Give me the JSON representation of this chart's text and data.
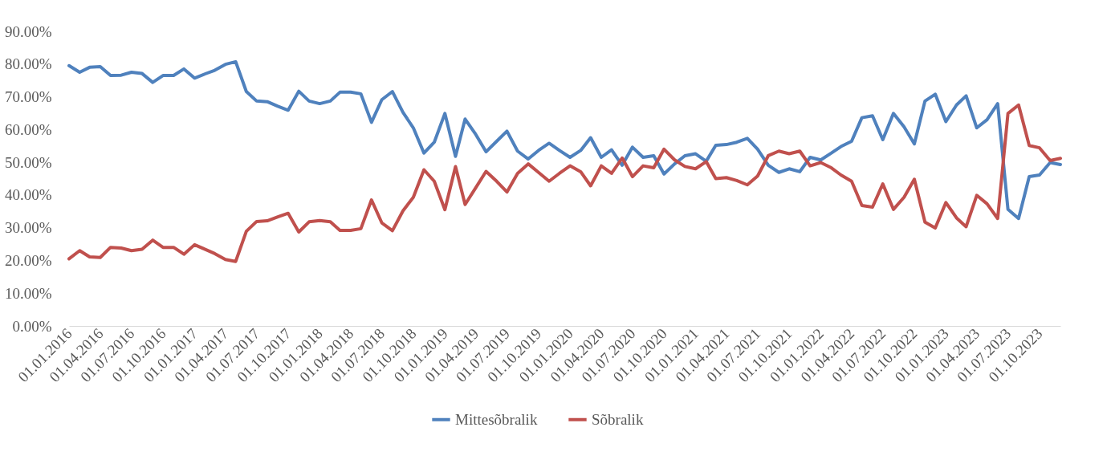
{
  "chart_data": {
    "type": "line",
    "x": [
      "2016-01",
      "2016-02",
      "2016-03",
      "2016-04",
      "2016-05",
      "2016-06",
      "2016-07",
      "2016-08",
      "2016-09",
      "2016-10",
      "2016-11",
      "2016-12",
      "2017-01",
      "2017-02",
      "2017-03",
      "2017-04",
      "2017-05",
      "2017-06",
      "2017-07",
      "2017-08",
      "2017-09",
      "2017-10",
      "2017-11",
      "2017-12",
      "2018-01",
      "2018-02",
      "2018-03",
      "2018-04",
      "2018-05",
      "2018-06",
      "2018-07",
      "2018-08",
      "2018-09",
      "2018-10",
      "2018-11",
      "2018-12",
      "2019-01",
      "2019-02",
      "2019-03",
      "2019-04",
      "2019-05",
      "2019-06",
      "2019-07",
      "2019-08",
      "2019-09",
      "2019-10",
      "2019-11",
      "2019-12",
      "2020-01",
      "2020-02",
      "2020-03",
      "2020-04",
      "2020-05",
      "2020-06",
      "2020-07",
      "2020-08",
      "2020-09",
      "2020-10",
      "2020-11",
      "2020-12",
      "2021-01",
      "2021-02",
      "2021-03",
      "2021-04",
      "2021-05",
      "2021-06",
      "2021-07",
      "2021-08",
      "2021-09",
      "2021-10",
      "2021-11",
      "2021-12",
      "2022-01",
      "2022-02",
      "2022-03",
      "2022-04",
      "2022-05",
      "2022-06",
      "2022-07",
      "2022-08",
      "2022-09",
      "2022-10",
      "2022-11",
      "2022-12",
      "2023-01",
      "2023-02",
      "2023-03",
      "2023-04",
      "2023-05",
      "2023-06",
      "2023-07",
      "2023-08",
      "2023-09",
      "2023-10",
      "2023-11",
      "2023-12"
    ],
    "series": [
      {
        "name": "Mittesõbralik",
        "color": "#4f81bd",
        "values": [
          79.5,
          77.5,
          79,
          79.2,
          76.5,
          76.6,
          77.5,
          77.1,
          74.4,
          76.5,
          76.5,
          78.5,
          75.7,
          77,
          78.1,
          79.9,
          80.7,
          71.6,
          68.7,
          68.5,
          67.1,
          65.9,
          71.7,
          68.7,
          67.9,
          68.7,
          71.4,
          71.4,
          70.9,
          62.2,
          69.1,
          71.6,
          65.2,
          60.5,
          52.8,
          56.1,
          64.9,
          51.8,
          63.2,
          58.5,
          53.2,
          56.4,
          59.5,
          53.4,
          51,
          53.6,
          55.8,
          53.6,
          51.5,
          53.6,
          57.5,
          51.5,
          53.8,
          49.1,
          54.6,
          51.5,
          52,
          46.4,
          49.5,
          52,
          52.6,
          50.3,
          55.2,
          55.4,
          56.1,
          57.3,
          54,
          49.1,
          46.9,
          48,
          47.1,
          51.5,
          50.7,
          52.8,
          54.8,
          56.4,
          63.6,
          64.2,
          56.9,
          64.9,
          60.8,
          55.6,
          68.7,
          70.8,
          62.4,
          67.5,
          70.3,
          60.5,
          63,
          67.9,
          35.6,
          32.8,
          45.6,
          46.1,
          49.9,
          49.3
        ]
      },
      {
        "name": "Sõbralik",
        "color": "#c0504d",
        "values": [
          20.5,
          23,
          21.1,
          20.9,
          24,
          23.8,
          23,
          23.4,
          26.2,
          24,
          24,
          21.9,
          24.8,
          23.4,
          22.1,
          20.3,
          19.7,
          28.9,
          31.9,
          32.1,
          33.3,
          34.4,
          28.7,
          31.8,
          32.2,
          31.8,
          29.2,
          29.2,
          29.7,
          38.5,
          31.5,
          29.1,
          35.2,
          39.3,
          47.7,
          44.2,
          35.5,
          48.7,
          37.1,
          42.2,
          47.2,
          44.2,
          40.9,
          46.6,
          49.5,
          46.9,
          44.2,
          46.6,
          48.9,
          47.1,
          42.8,
          48.9,
          46.6,
          51.3,
          45.6,
          48.9,
          48.3,
          54,
          50.7,
          48.7,
          48,
          50.2,
          45,
          45.3,
          44.4,
          43.1,
          45.8,
          52,
          53.4,
          52.6,
          53.4,
          48.9,
          49.9,
          48.3,
          46.1,
          44.2,
          36.8,
          36.3,
          43.4,
          35.6,
          39.3,
          44.8,
          31.7,
          29.9,
          37.7,
          33,
          30.3,
          39.9,
          37.3,
          32.8,
          64.9,
          67.5,
          55.1,
          54.4,
          50.5,
          51.2
        ]
      }
    ],
    "xlim": [
      "2016-01",
      "2023-12"
    ],
    "xticks": [
      {
        "value": "2016-01",
        "label": "01.01.2016"
      },
      {
        "value": "2016-04",
        "label": "01.04.2016"
      },
      {
        "value": "2016-07",
        "label": "01.07.2016"
      },
      {
        "value": "2016-10",
        "label": "01.10.2016"
      },
      {
        "value": "2017-01",
        "label": "01.01.2017"
      },
      {
        "value": "2017-04",
        "label": "01.04.2017"
      },
      {
        "value": "2017-07",
        "label": "01.07.2017"
      },
      {
        "value": "2017-10",
        "label": "01.10.2017"
      },
      {
        "value": "2018-01",
        "label": "01.01.2018"
      },
      {
        "value": "2018-04",
        "label": "01.04.2018"
      },
      {
        "value": "2018-07",
        "label": "01.07.2018"
      },
      {
        "value": "2018-10",
        "label": "01.10.2018"
      },
      {
        "value": "2019-01",
        "label": "01.01.2019"
      },
      {
        "value": "2019-04",
        "label": "01.04.2019"
      },
      {
        "value": "2019-07",
        "label": "01.07.2019"
      },
      {
        "value": "2019-10",
        "label": "01.10.2019"
      },
      {
        "value": "2020-01",
        "label": "01.01.2020"
      },
      {
        "value": "2020-04",
        "label": "01.04.2020"
      },
      {
        "value": "2020-07",
        "label": "01.07.2020"
      },
      {
        "value": "2020-10",
        "label": "01.10.2020"
      },
      {
        "value": "2021-01",
        "label": "01.01.2021"
      },
      {
        "value": "2021-04",
        "label": "01.04.2021"
      },
      {
        "value": "2021-07",
        "label": "01.07.2021"
      },
      {
        "value": "2021-10",
        "label": "01.10.2021"
      },
      {
        "value": "2022-01",
        "label": "01.01.2022"
      },
      {
        "value": "2022-04",
        "label": "01.04.2022"
      },
      {
        "value": "2022-07",
        "label": "01.07.2022"
      },
      {
        "value": "2022-10",
        "label": "01.10.2022"
      },
      {
        "value": "2023-01",
        "label": "01.01.2023"
      },
      {
        "value": "2023-04",
        "label": "01.04.2023"
      },
      {
        "value": "2023-07",
        "label": "01.07.2023"
      },
      {
        "value": "2023-10",
        "label": "01.10.2023"
      }
    ],
    "ylim": [
      0,
      90
    ],
    "yticks": [
      {
        "value": 0,
        "label": "0.00%"
      },
      {
        "value": 10,
        "label": "10.00%"
      },
      {
        "value": 20,
        "label": "20.00%"
      },
      {
        "value": 30,
        "label": "30.00%"
      },
      {
        "value": 40,
        "label": "40.00%"
      },
      {
        "value": 50,
        "label": "50.00%"
      },
      {
        "value": 60,
        "label": "60.00%"
      },
      {
        "value": 70,
        "label": "70.00%"
      },
      {
        "value": 80,
        "label": "80.00%"
      },
      {
        "value": 90,
        "label": "90.00%"
      }
    ],
    "grid": false,
    "legend": "bottom",
    "line_style": "solid"
  }
}
